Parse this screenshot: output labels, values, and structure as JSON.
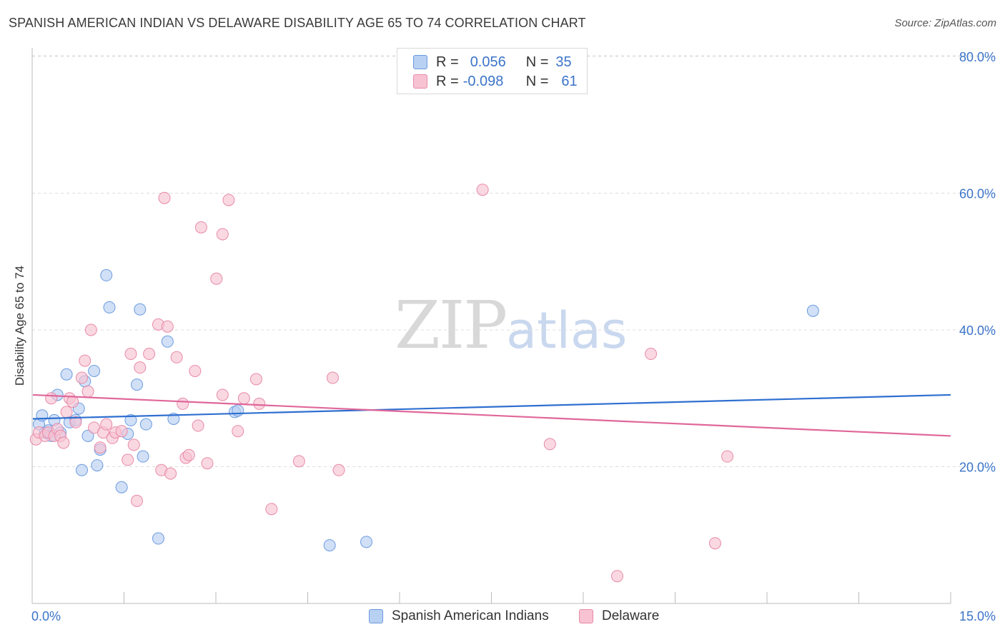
{
  "title": "SPANISH AMERICAN INDIAN VS DELAWARE DISABILITY AGE 65 TO 74 CORRELATION CHART",
  "source": "Source: ZipAtlas.com",
  "watermark": {
    "zip": "ZIP",
    "atlas": "atlas"
  },
  "legend": {
    "rows": [
      {
        "r_label": "R =",
        "r_value": "0.056",
        "n_label": "N =",
        "n_value": "35"
      },
      {
        "r_label": "R =",
        "r_value": "-0.098",
        "n_label": "N =",
        "n_value": "61"
      }
    ]
  },
  "colors": {
    "blue_fill": "#b8d0f2",
    "blue_stroke": "#6b9be0",
    "blue_line": "#2f6fd0",
    "pink_fill": "#f7c3d3",
    "pink_stroke": "#e88aa8",
    "pink_line": "#e0679a",
    "axis_text": "#3b74c9",
    "grid": "#dddddd"
  },
  "chart_data": {
    "type": "scatter",
    "title": "SPANISH AMERICAN INDIAN VS DELAWARE DISABILITY AGE 65 TO 74 CORRELATION CHART",
    "xlabel": "",
    "ylabel": "Disability Age 65 to 74",
    "xlim": [
      0,
      15
    ],
    "ylim": [
      0,
      80
    ],
    "x_tick_labels": [
      "0.0%",
      "15.0%"
    ],
    "y_ticks": [
      20,
      40,
      60,
      80
    ],
    "y_tick_labels": [
      "20.0%",
      "40.0%",
      "60.0%",
      "80.0%"
    ],
    "grid": true,
    "legend_position": "bottom",
    "series": [
      {
        "name": "Spanish American Indians",
        "r": 0.056,
        "n": 35,
        "trend": {
          "x": [
            0,
            15
          ],
          "y": [
            27.0,
            30.5
          ]
        },
        "points": [
          [
            0.1,
            26.2
          ],
          [
            0.15,
            27.5
          ],
          [
            0.2,
            25.0
          ],
          [
            0.25,
            25.3
          ],
          [
            0.3,
            24.5
          ],
          [
            0.35,
            26.8
          ],
          [
            0.4,
            30.5
          ],
          [
            0.45,
            25.0
          ],
          [
            0.55,
            33.5
          ],
          [
            0.6,
            26.5
          ],
          [
            0.7,
            26.8
          ],
          [
            0.75,
            28.5
          ],
          [
            0.8,
            19.5
          ],
          [
            0.85,
            32.5
          ],
          [
            0.9,
            24.5
          ],
          [
            1.0,
            34.0
          ],
          [
            1.05,
            20.2
          ],
          [
            1.1,
            22.5
          ],
          [
            1.2,
            48.0
          ],
          [
            1.25,
            43.3
          ],
          [
            1.45,
            17.0
          ],
          [
            1.55,
            24.8
          ],
          [
            1.6,
            26.8
          ],
          [
            1.7,
            32.0
          ],
          [
            1.75,
            43.0
          ],
          [
            1.8,
            21.5
          ],
          [
            1.85,
            26.2
          ],
          [
            2.05,
            9.5
          ],
          [
            2.2,
            38.3
          ],
          [
            2.3,
            27.0
          ],
          [
            3.3,
            28.0
          ],
          [
            3.35,
            28.2
          ],
          [
            4.85,
            8.5
          ],
          [
            5.45,
            9.0
          ],
          [
            12.75,
            42.8
          ]
        ]
      },
      {
        "name": "Delaware",
        "r": -0.098,
        "n": 61,
        "trend": {
          "x": [
            0,
            15
          ],
          "y": [
            30.5,
            24.5
          ]
        },
        "points": [
          [
            0.05,
            24.0
          ],
          [
            0.1,
            25.0
          ],
          [
            0.2,
            24.5
          ],
          [
            0.25,
            25.0
          ],
          [
            0.3,
            30.0
          ],
          [
            0.35,
            24.5
          ],
          [
            0.4,
            25.5
          ],
          [
            0.45,
            24.5
          ],
          [
            0.5,
            23.5
          ],
          [
            0.55,
            28.0
          ],
          [
            0.6,
            30.0
          ],
          [
            0.65,
            29.5
          ],
          [
            0.7,
            26.5
          ],
          [
            0.8,
            33.0
          ],
          [
            0.85,
            35.5
          ],
          [
            0.9,
            31.0
          ],
          [
            0.95,
            40.0
          ],
          [
            1.0,
            25.7
          ],
          [
            1.1,
            22.8
          ],
          [
            1.15,
            25.0
          ],
          [
            1.2,
            26.2
          ],
          [
            1.3,
            24.2
          ],
          [
            1.35,
            25.0
          ],
          [
            1.45,
            25.2
          ],
          [
            1.55,
            21.0
          ],
          [
            1.6,
            36.5
          ],
          [
            1.65,
            23.2
          ],
          [
            1.7,
            15.0
          ],
          [
            1.75,
            34.5
          ],
          [
            1.9,
            36.5
          ],
          [
            2.05,
            40.8
          ],
          [
            2.1,
            19.5
          ],
          [
            2.15,
            59.3
          ],
          [
            2.2,
            40.5
          ],
          [
            2.25,
            19.0
          ],
          [
            2.35,
            36.0
          ],
          [
            2.45,
            29.2
          ],
          [
            2.5,
            21.3
          ],
          [
            2.55,
            21.7
          ],
          [
            2.65,
            34.0
          ],
          [
            2.7,
            26.0
          ],
          [
            2.75,
            55.0
          ],
          [
            2.85,
            20.5
          ],
          [
            3.0,
            47.5
          ],
          [
            3.1,
            54.0
          ],
          [
            3.1,
            30.5
          ],
          [
            3.2,
            59.0
          ],
          [
            3.35,
            25.2
          ],
          [
            3.45,
            30.0
          ],
          [
            3.65,
            32.8
          ],
          [
            3.7,
            29.2
          ],
          [
            3.9,
            13.8
          ],
          [
            4.35,
            20.8
          ],
          [
            4.9,
            33.0
          ],
          [
            5.0,
            19.5
          ],
          [
            7.35,
            60.5
          ],
          [
            8.45,
            23.3
          ],
          [
            9.55,
            4.0
          ],
          [
            10.1,
            36.5
          ],
          [
            11.15,
            8.8
          ],
          [
            11.35,
            21.5
          ]
        ]
      }
    ]
  }
}
